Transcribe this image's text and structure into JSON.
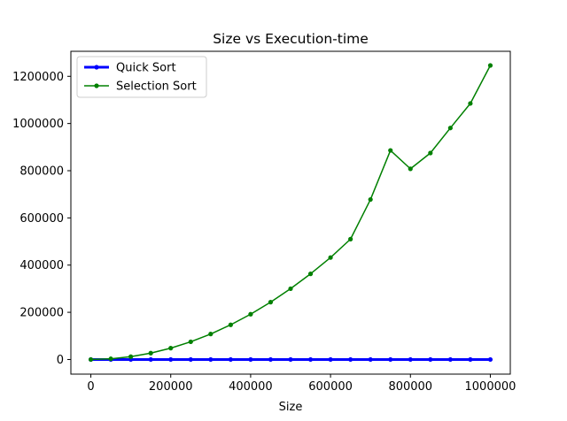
{
  "chart_data": {
    "type": "line",
    "title": "Size vs Execution-time",
    "xlabel": "Size",
    "ylabel": "",
    "xlim": [
      -50000,
      1050000
    ],
    "ylim": [
      -62000,
      1306000
    ],
    "xticks": [
      0,
      200000,
      400000,
      600000,
      800000,
      1000000
    ],
    "xtick_labels": [
      "0",
      "200000",
      "400000",
      "600000",
      "800000",
      "1000000"
    ],
    "yticks": [
      0,
      200000,
      400000,
      600000,
      800000,
      1000000,
      1200000
    ],
    "ytick_labels": [
      "0",
      "200000",
      "400000",
      "600000",
      "800000",
      "1000000",
      "1200000"
    ],
    "grid": false,
    "legend_position": "top-left",
    "x": [
      0,
      50000,
      100000,
      150000,
      200000,
      250000,
      300000,
      350000,
      400000,
      450000,
      500000,
      550000,
      600000,
      650000,
      700000,
      750000,
      800000,
      850000,
      900000,
      950000,
      1000000
    ],
    "series": [
      {
        "name": "Quick Sort",
        "color": "#0000ff",
        "line_width": 3,
        "values": [
          0,
          0,
          0,
          0,
          0,
          0,
          0,
          0,
          0,
          0,
          0,
          0,
          0,
          0,
          0,
          0,
          0,
          0,
          0,
          0,
          0
        ]
      },
      {
        "name": "Selection Sort",
        "color": "#008000",
        "line_width": 1.5,
        "values": [
          0,
          3000,
          12000,
          27000,
          48000,
          75000,
          108000,
          147000,
          192000,
          243000,
          300000,
          363000,
          432000,
          510000,
          678000,
          886000,
          808000,
          875000,
          981000,
          1085000,
          1246000
        ]
      }
    ]
  }
}
